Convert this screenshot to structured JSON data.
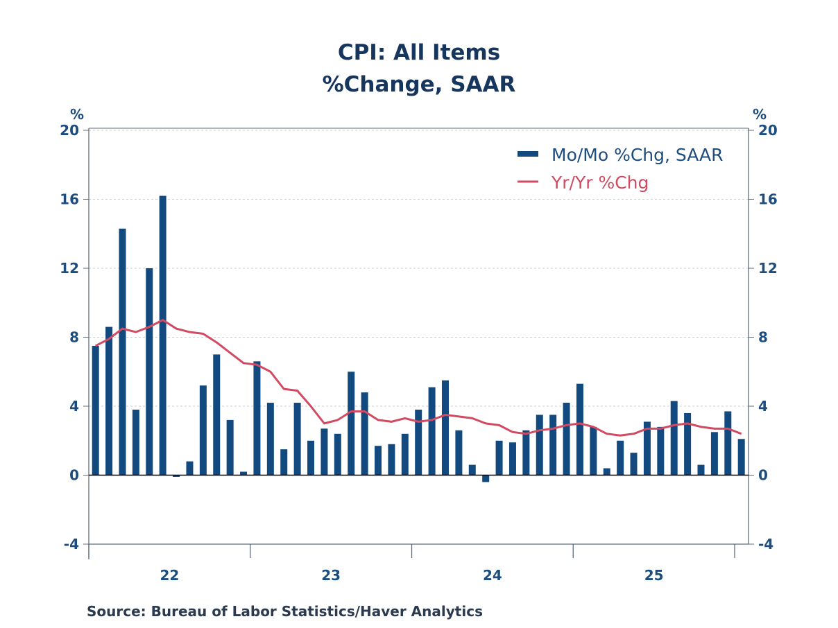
{
  "chart_data": {
    "type": "bar+line",
    "title": "CPI: All Items",
    "subtitle": "%Change, SAAR",
    "ylabel_left": "%",
    "ylabel_right": "%",
    "ylim": [
      -4,
      20
    ],
    "yticks": [
      -4,
      0,
      4,
      8,
      12,
      16,
      20
    ],
    "xtick_labels": [
      "22",
      "23",
      "24",
      "25"
    ],
    "grid": "horizontal dashed",
    "legend_position": "top-right",
    "source": "Source:  Bureau of Labor Statistics/Haver Analytics",
    "colors": {
      "bars": "#124a80",
      "line": "#d24a62",
      "text": "#17365d"
    },
    "series": [
      {
        "name": "Mo/Mo %Chg, SAAR",
        "type": "bar",
        "values": [
          7.5,
          8.6,
          14.3,
          3.8,
          12.0,
          16.2,
          -0.1,
          0.8,
          5.2,
          7.0,
          3.2,
          0.2,
          6.6,
          4.2,
          1.5,
          4.2,
          2.0,
          2.7,
          2.4,
          6.0,
          4.8,
          1.7,
          1.8,
          2.4,
          3.8,
          5.1,
          5.5,
          2.6,
          0.6,
          -0.4,
          2.0,
          1.9,
          2.6,
          3.5,
          3.5,
          4.2,
          5.3,
          2.8,
          0.4,
          2.0,
          1.3,
          3.1,
          2.8,
          4.3,
          3.6,
          0.6,
          2.5,
          3.7,
          2.1
        ]
      },
      {
        "name": "Yr/Yr %Chg",
        "type": "line",
        "values": [
          7.5,
          7.9,
          8.5,
          8.3,
          8.6,
          9.0,
          8.5,
          8.3,
          8.2,
          7.7,
          7.1,
          6.5,
          6.4,
          6.0,
          5.0,
          4.9,
          4.0,
          3.0,
          3.2,
          3.7,
          3.7,
          3.2,
          3.1,
          3.3,
          3.1,
          3.2,
          3.5,
          3.4,
          3.3,
          3.0,
          2.9,
          2.5,
          2.4,
          2.6,
          2.7,
          2.9,
          3.0,
          2.8,
          2.4,
          2.3,
          2.4,
          2.7,
          2.7,
          2.9,
          3.0,
          2.8,
          2.7,
          2.7,
          2.4
        ]
      }
    ]
  }
}
